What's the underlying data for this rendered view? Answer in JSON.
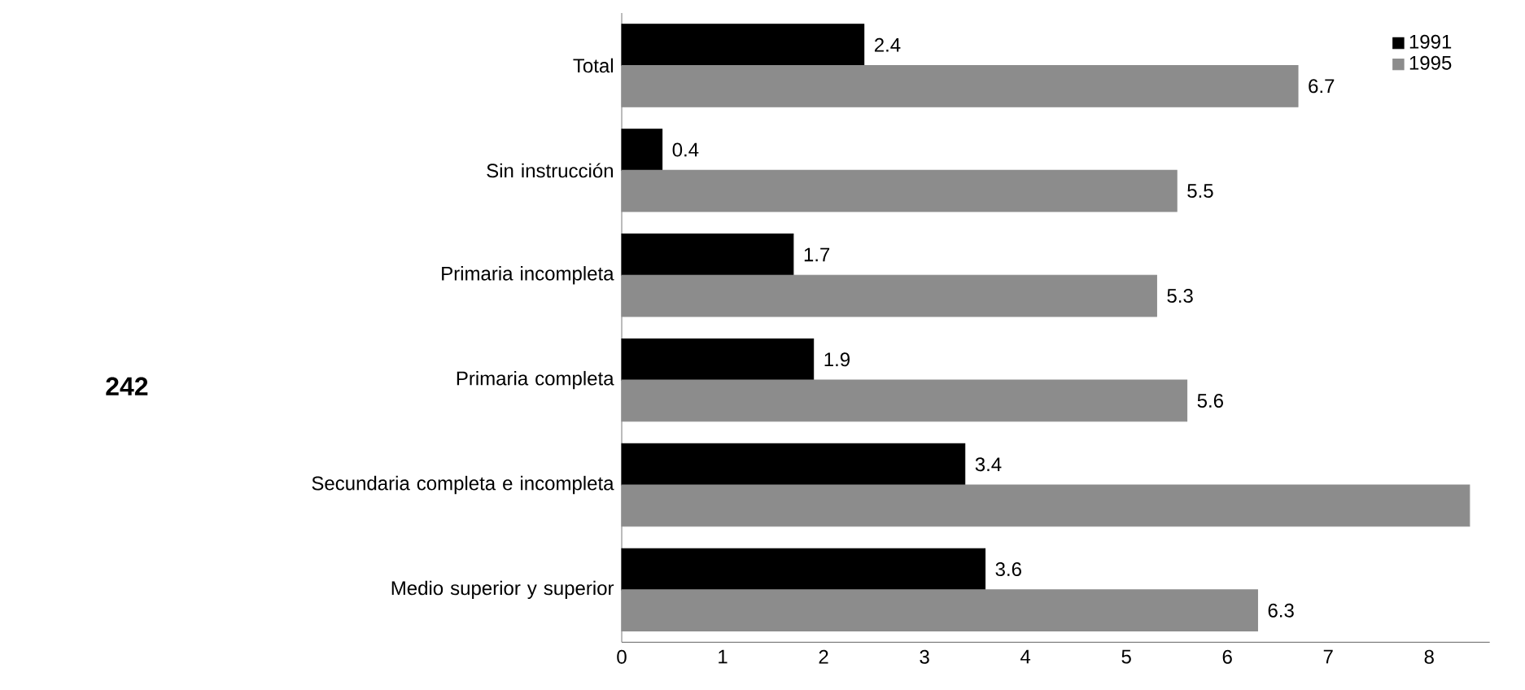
{
  "chart_data": {
    "type": "bar",
    "orientation": "horizontal",
    "categories": [
      "Total",
      "Sin instrucción",
      "Primaria incompleta",
      "Primaria completa",
      "Secundaria completa e incompleta",
      "Medio superior y superior"
    ],
    "series": [
      {
        "name": "1991",
        "color": "#000000",
        "values": [
          2.4,
          0.4,
          1.7,
          1.9,
          3.4,
          3.6
        ],
        "value_labels": [
          "2.4",
          "0.4",
          "1.7",
          "1.9",
          "3.4",
          "3.6"
        ]
      },
      {
        "name": "1995",
        "color": "#8c8c8c",
        "values": [
          6.7,
          5.5,
          5.3,
          5.6,
          8.4,
          6.3
        ],
        "value_labels": [
          "6.7",
          "5.5",
          "5.3",
          "5.6",
          null,
          "6.3"
        ]
      }
    ],
    "xlim": [
      0,
      8.6
    ],
    "xticks": [
      0,
      1,
      2,
      3,
      4,
      5,
      6,
      7,
      8
    ],
    "legend": "top right",
    "grid": false,
    "annotations": [
      "242"
    ]
  }
}
